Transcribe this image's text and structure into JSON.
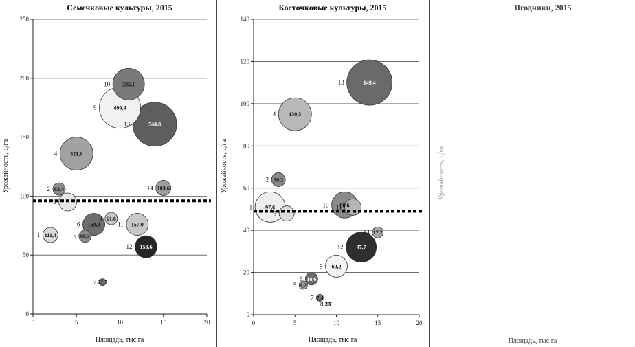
{
  "chart_data": [
    {
      "type": "bubble",
      "title": "Семечковые культуры, 2015",
      "xlabel": "Площадь, тыс.га",
      "ylabel": "Урожайность, ц/га",
      "xlim": [
        0,
        20
      ],
      "ylim": [
        0,
        250
      ],
      "x_ticks": [
        0,
        5,
        10,
        15,
        20
      ],
      "y_ticks": [
        0,
        50,
        100,
        150,
        200,
        250
      ],
      "grid": "horizontal",
      "reference_line_y": 96,
      "points": [
        {
          "id": "1",
          "x": 2,
          "y": 67,
          "label": "111,4",
          "r": 11,
          "shade": "#dadada"
        },
        {
          "id": "2",
          "x": 3,
          "y": 106,
          "label": "63,4",
          "r": 9,
          "shade": "#8c8c8c"
        },
        {
          "id": "3",
          "x": 4,
          "y": 95,
          "label": "",
          "r": 13,
          "shade": "#e6e6e6"
        },
        {
          "id": "4",
          "x": 5,
          "y": 136,
          "label": "321,6",
          "r": 24,
          "shade": "#a2a2a2"
        },
        {
          "id": "5",
          "x": 6,
          "y": 66,
          "label": "60,2",
          "r": 9,
          "shade": "#8c8c8c"
        },
        {
          "id": "6",
          "x": 7,
          "y": 76,
          "label": "159,8",
          "r": 16,
          "shade": "#6e6e6e"
        },
        {
          "id": "7",
          "x": 8,
          "y": 27,
          "label": "22,2",
          "r": 5,
          "shade": "#7c7c7c"
        },
        {
          "id": "8",
          "x": 9,
          "y": 81,
          "label": "61,6",
          "r": 9,
          "shade": "#c8c8c8"
        },
        {
          "id": "9",
          "x": 10,
          "y": 175,
          "label": "499,4",
          "r": 30,
          "shade": "#f1f1f1"
        },
        {
          "id": "10",
          "x": 11,
          "y": 195,
          "label": "285,1",
          "r": 23,
          "shade": "#7a7a7a"
        },
        {
          "id": "11",
          "x": 12,
          "y": 76,
          "label": "157,0",
          "r": 16,
          "shade": "#c8c8c8"
        },
        {
          "id": "12",
          "x": 13,
          "y": 57,
          "label": "153,6",
          "r": 16,
          "shade": "#262626"
        },
        {
          "id": "13",
          "x": 14,
          "y": 161,
          "label": "544,8",
          "r": 32,
          "shade": "#5e5e5e"
        },
        {
          "id": "14",
          "x": 15,
          "y": 107,
          "label": "103,6",
          "r": 11,
          "shade": "#9e9e9e"
        }
      ]
    },
    {
      "type": "bubble",
      "title": "Косточковые культуры, 2015",
      "xlabel": "Площадь, тыс.га",
      "ylabel": "Урожайность, ц/га",
      "xlim": [
        0,
        20
      ],
      "ylim": [
        0,
        140
      ],
      "x_ticks": [
        0,
        5,
        10,
        15,
        20
      ],
      "y_ticks": [
        0,
        20,
        40,
        60,
        80,
        100,
        120,
        140
      ],
      "grid": "horizontal",
      "reference_line_y": 49,
      "points": [
        {
          "id": "1",
          "x": 2,
          "y": 51,
          "label": "97,6",
          "r": 22,
          "shade": "#eeeeee"
        },
        {
          "id": "2",
          "x": 3,
          "y": 64,
          "label": "30,2",
          "r": 10,
          "shade": "#888888"
        },
        {
          "id": "3",
          "x": 4,
          "y": 48,
          "label": "",
          "r": 11,
          "shade": "#dcdcdc"
        },
        {
          "id": "4",
          "x": 5,
          "y": 95,
          "label": "130,5",
          "r": 24,
          "shade": "#b8b8b8"
        },
        {
          "id": "5",
          "x": 6,
          "y": 14,
          "label": "9,2",
          "r": 6,
          "shade": "#9a9a9a"
        },
        {
          "id": "6",
          "x": 7,
          "y": 17,
          "label": "18,6",
          "r": 9,
          "shade": "#6a6a6a"
        },
        {
          "id": "7",
          "x": 8,
          "y": 8,
          "label": "7,4",
          "r": 5,
          "shade": "#7a7a7a"
        },
        {
          "id": "8",
          "x": 9,
          "y": 5,
          "label": "2,7",
          "r": 3,
          "shade": "#b0b0b0"
        },
        {
          "id": "9",
          "x": 10,
          "y": 23,
          "label": "69,2",
          "r": 16,
          "shade": "#f4f4f4"
        },
        {
          "id": "10",
          "x": 11,
          "y": 52,
          "label": "80,6",
          "r": 19,
          "shade": "#8a8a8a"
        },
        {
          "id": "11",
          "x": 12,
          "y": 51,
          "label": "",
          "r": 12,
          "shade": "#b4b4b4"
        },
        {
          "id": "12",
          "x": 13,
          "y": 32,
          "label": "97,7",
          "r": 22,
          "shade": "#2e2e2e"
        },
        {
          "id": "13",
          "x": 14,
          "y": 110,
          "label": "149,4",
          "r": 33,
          "shade": "#6a6a6a"
        },
        {
          "id": "14",
          "x": 15,
          "y": 39,
          "label": "17,2",
          "r": 8,
          "shade": "#a8a8a8"
        }
      ]
    },
    {
      "type": "bubble",
      "title": "Ягодники, 2015",
      "xlabel": "Площадь, тыс.га",
      "ylabel": "Урожайность, ц/га",
      "points": []
    }
  ]
}
